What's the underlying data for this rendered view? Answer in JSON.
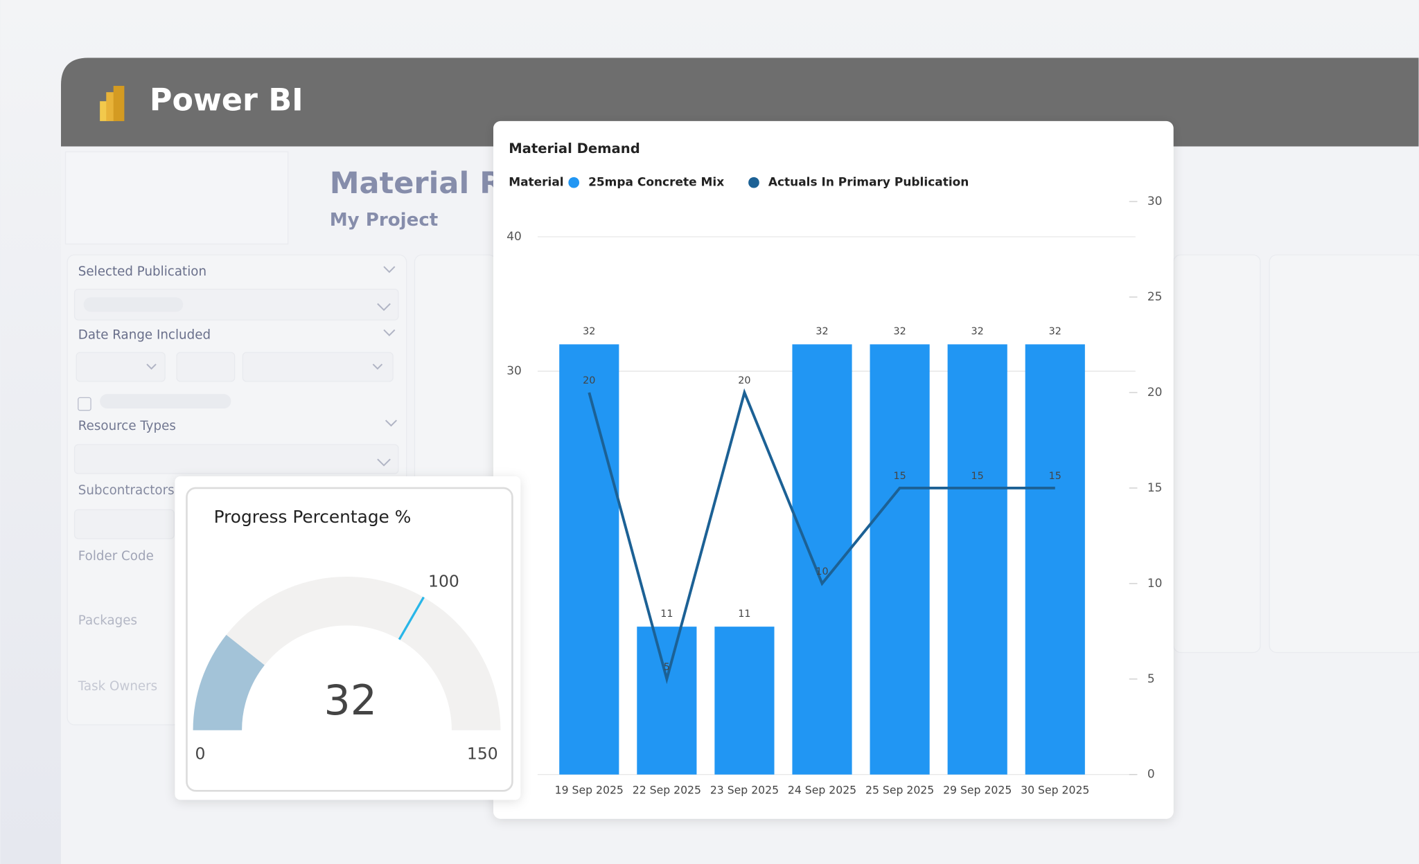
{
  "app": {
    "title": "Power BI"
  },
  "report": {
    "title": "Material Re",
    "subtitle": "My Project"
  },
  "filters": [
    "Selected Publication",
    "Date Range Included",
    "Resource Types",
    "Subcontractors",
    "Folder Code",
    "Packages",
    "Task Owners"
  ],
  "chart_data": [
    {
      "type": "bar",
      "title": "Material Demand",
      "legend_title": "Material",
      "categories": [
        "19 Sep 2025",
        "22 Sep 2025",
        "23 Sep 2025",
        "24 Sep 2025",
        "25 Sep 2025",
        "29 Sep 2025",
        "30 Sep 2025"
      ],
      "series": [
        {
          "name": "25mpa Concrete Mix",
          "type": "bar",
          "color": "#2196f3",
          "values": [
            32,
            11,
            11,
            32,
            32,
            32,
            32
          ]
        },
        {
          "name": "Actuals In Primary Publication",
          "type": "line",
          "axis": "y2",
          "color": "#1c6195",
          "values": [
            20,
            5,
            20,
            10,
            15,
            15,
            15
          ]
        }
      ],
      "ylim": [
        0,
        40
      ],
      "yticks": [
        30,
        40
      ],
      "y2lim": [
        0,
        30
      ],
      "y2ticks": [
        0,
        5,
        10,
        15,
        20,
        25,
        30
      ],
      "grid": true
    },
    {
      "type": "gauge",
      "title": "Progress Percentage %",
      "value": 32,
      "min": 0,
      "max": 150,
      "target": 100,
      "color": "#a3c3d8",
      "background_color": "#f2f1f0",
      "target_color": "#29b6e8"
    }
  ]
}
